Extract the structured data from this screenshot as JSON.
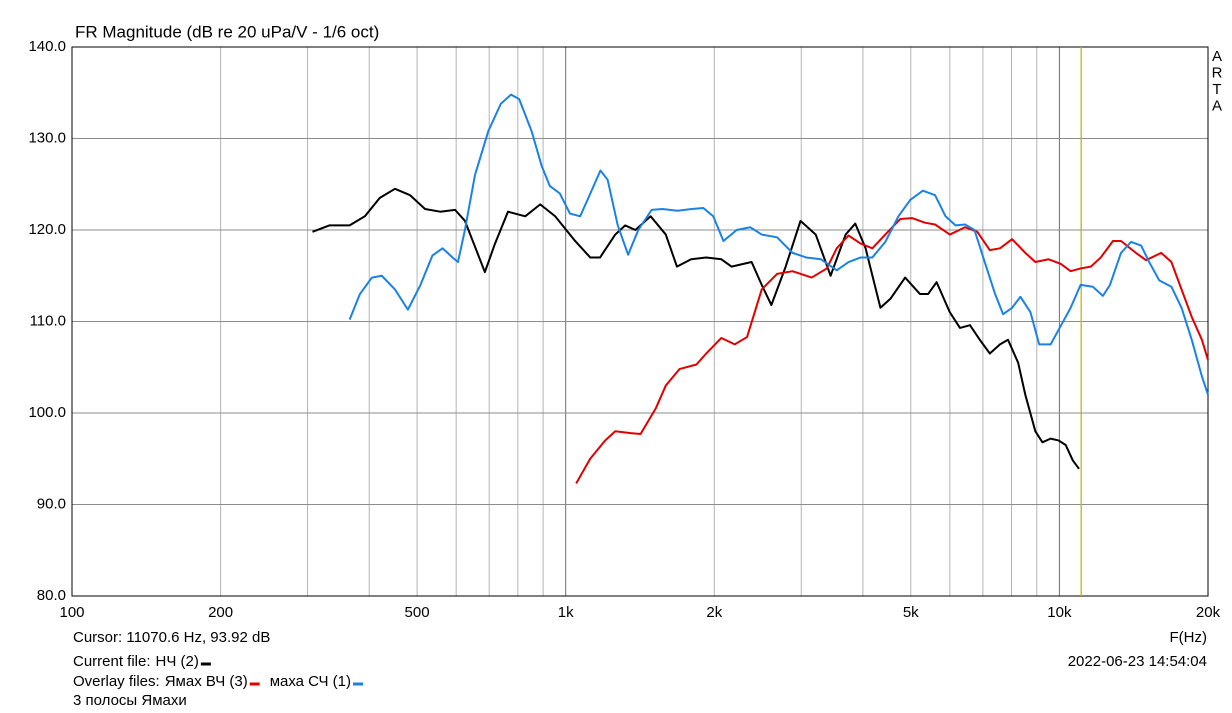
{
  "chart_data": {
    "type": "line",
    "title": "FR Magnitude (dB re 20 uPa/V - 1/6 oct)",
    "xlabel": "F(Hz)",
    "side_label": "ARTA",
    "log_x": true,
    "grid": true,
    "xlim": [
      100,
      20000
    ],
    "ylim": [
      80,
      140
    ],
    "xticks": [
      100,
      200,
      500,
      {
        "value": 1000,
        "label": "1k"
      },
      {
        "value": 2000,
        "label": "2k"
      },
      {
        "value": 5000,
        "label": "5k"
      },
      {
        "value": 10000,
        "label": "10k"
      },
      {
        "value": 20000,
        "label": "20k"
      }
    ],
    "xminor": [
      300,
      400,
      600,
      700,
      800,
      900,
      3000,
      4000,
      6000,
      7000,
      8000,
      9000
    ],
    "yticks": [
      {
        "value": 80,
        "label": "80.0"
      },
      {
        "value": 90,
        "label": "90.0"
      },
      {
        "value": 100,
        "label": "100.0"
      },
      {
        "value": 110,
        "label": "110.0"
      },
      {
        "value": 120,
        "label": "120.0"
      },
      {
        "value": 130,
        "label": "130.0"
      },
      {
        "value": 140,
        "label": "140.0"
      }
    ],
    "cursor": {
      "label": "Cursor: 11070.6 Hz, 93.92 dB",
      "x": 11070.6,
      "color": "#c8b400"
    },
    "current_file_label": "Current file:",
    "overlay_files_label": "Overlay files:",
    "timestamp": "2022-06-23  14:54:04",
    "note": "3 полосы Ямахи",
    "series": [
      {
        "name": "НЧ (2)",
        "color": "#000000",
        "x": [
          307,
          332,
          365,
          392,
          420,
          451,
          484,
          519,
          557,
          597,
          625,
          686,
          719,
          764,
          828,
          888,
          952,
          1045,
          1121,
          1174,
          1260,
          1320,
          1384,
          1486,
          1595,
          1680,
          1795,
          1926,
          2067,
          2167,
          2380,
          2495,
          2610,
          2790,
          2990,
          3210,
          3440,
          3690,
          3860,
          4050,
          4340,
          4550,
          4870,
          5220,
          5420,
          5640,
          6000,
          6290,
          6590,
          6900,
          7230,
          7580,
          7870,
          8250,
          8530,
          8940,
          9240,
          9600,
          9960,
          10300,
          10650,
          10960
        ],
        "values": [
          119.8,
          120.5,
          120.5,
          121.5,
          123.5,
          124.5,
          123.8,
          122.3,
          122,
          122.2,
          121,
          115.4,
          118.5,
          122,
          121.5,
          122.8,
          121.5,
          118.8,
          117,
          117,
          119.5,
          120.5,
          120,
          121.5,
          119.5,
          116,
          116.8,
          117,
          116.8,
          116,
          116.5,
          114,
          111.8,
          116,
          121,
          119.5,
          115,
          119.5,
          120.7,
          118,
          111.5,
          112.5,
          114.8,
          113,
          113,
          114.3,
          111,
          109.3,
          109.6,
          108,
          106.5,
          107.5,
          108,
          105.5,
          102,
          98,
          96.8,
          97.2,
          97,
          96.5,
          94.8,
          93.9
        ]
      },
      {
        "name": "Ямах ВЧ (3)",
        "color": "#e00000",
        "x": [
          1050,
          1121,
          1202,
          1260,
          1354,
          1418,
          1522,
          1595,
          1700,
          1840,
          1926,
          2067,
          2200,
          2330,
          2495,
          2680,
          2880,
          3150,
          3380,
          3540,
          3740,
          3960,
          4180,
          4440,
          4760,
          5030,
          5340,
          5600,
          6000,
          6440,
          6820,
          7230,
          7580,
          8020,
          8530,
          8940,
          9510,
          10060,
          10540,
          11040,
          11580,
          12130,
          12840,
          13330,
          14290,
          14980,
          16080,
          16860,
          17680,
          18540,
          19440,
          20000
        ],
        "values": [
          92.3,
          95,
          97,
          98,
          97.8,
          97.7,
          100.5,
          103,
          104.8,
          105.3,
          106.5,
          108.2,
          107.5,
          108.3,
          113.5,
          115.2,
          115.5,
          114.8,
          115.8,
          118,
          119.4,
          118.5,
          118,
          119.5,
          121.2,
          121.3,
          120.8,
          120.6,
          119.5,
          120.3,
          119.8,
          117.8,
          118,
          119,
          117.5,
          116.5,
          116.8,
          116.3,
          115.5,
          115.8,
          116,
          117,
          118.8,
          118.8,
          117.5,
          116.7,
          117.5,
          116.5,
          113.5,
          110.5,
          108,
          105.8
        ]
      },
      {
        "name": "маха СЧ (1)",
        "color": "#1a82e6",
        "x": [
          365,
          383,
          405,
          424,
          451,
          479,
          508,
          537,
          563,
          590,
          605,
          625,
          655,
          697,
          739,
          775,
          805,
          853,
          894,
          929,
          973,
          1020,
          1070,
          1122,
          1176,
          1216,
          1275,
          1338,
          1403,
          1493,
          1570,
          1683,
          1800,
          1900,
          1990,
          2087,
          2220,
          2365,
          2495,
          2680,
          2880,
          3070,
          3290,
          3540,
          3740,
          3960,
          4180,
          4440,
          4720,
          4990,
          5290,
          5600,
          5880,
          6160,
          6440,
          6730,
          7060,
          7410,
          7690,
          8020,
          8340,
          8740,
          9100,
          9600,
          10060,
          10540,
          11040,
          11690,
          12250,
          12660,
          13330,
          13970,
          14640,
          15200,
          15930,
          16860,
          17680,
          18540,
          19440,
          20000
        ],
        "values": [
          110.2,
          113,
          114.8,
          115,
          113.5,
          111.3,
          114,
          117.2,
          118,
          117,
          116.5,
          120,
          126,
          130.8,
          133.8,
          134.8,
          134.3,
          130.8,
          127,
          124.8,
          124,
          121.8,
          121.5,
          124,
          126.5,
          125.5,
          120.5,
          117.3,
          120,
          122.2,
          122.3,
          122.1,
          122.3,
          122.4,
          121.5,
          118.8,
          120,
          120.3,
          119.5,
          119.2,
          117.5,
          117,
          116.8,
          115.6,
          116.5,
          117,
          117,
          118.7,
          121.5,
          123.3,
          124.3,
          123.8,
          121.5,
          120.5,
          120.6,
          120,
          116.5,
          113,
          110.8,
          111.5,
          112.7,
          111,
          107.5,
          107.5,
          109.5,
          111.5,
          114,
          113.8,
          112.8,
          114,
          117.5,
          118.7,
          118.3,
          116.5,
          114.5,
          113.8,
          111.5,
          108,
          104,
          102
        ]
      }
    ]
  }
}
